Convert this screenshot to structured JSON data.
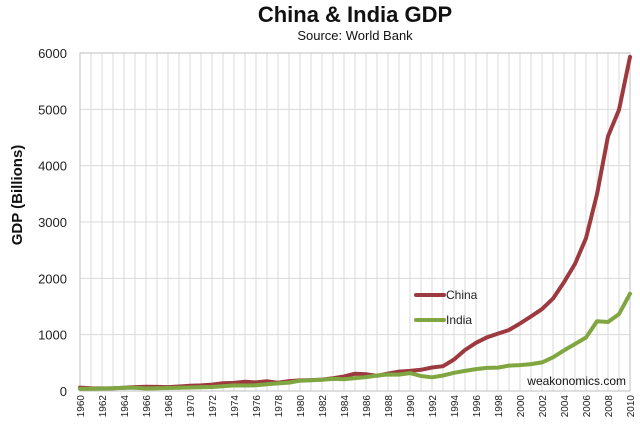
{
  "chart_data": {
    "type": "line",
    "title": "China & India GDP",
    "subtitle": "Source: World Bank",
    "xlabel": "",
    "ylabel": "GDP (Billions)",
    "credit": "weakonomics.com",
    "ylim": [
      0,
      6000
    ],
    "yticks": [
      0,
      1000,
      2000,
      3000,
      4000,
      5000,
      6000
    ],
    "x": [
      1960,
      1961,
      1962,
      1963,
      1964,
      1965,
      1966,
      1967,
      1968,
      1969,
      1970,
      1971,
      1972,
      1973,
      1974,
      1975,
      1976,
      1977,
      1978,
      1979,
      1980,
      1981,
      1982,
      1983,
      1984,
      1985,
      1986,
      1987,
      1988,
      1989,
      1990,
      1991,
      1992,
      1993,
      1994,
      1995,
      1996,
      1997,
      1998,
      1999,
      2000,
      2001,
      2002,
      2003,
      2004,
      2005,
      2006,
      2007,
      2008,
      2009,
      2010
    ],
    "xtick_labels": [
      "1960",
      "1962",
      "1964",
      "1966",
      "1968",
      "1970",
      "1972",
      "1974",
      "1976",
      "1978",
      "1980",
      "1982",
      "1984",
      "1986",
      "1988",
      "1990",
      "1992",
      "1994",
      "1996",
      "1998",
      "2000",
      "2002",
      "2004",
      "2006",
      "2008",
      "2010"
    ],
    "grid": true,
    "legend": "center-right",
    "series": [
      {
        "name": "China",
        "color": "#9c3a3f",
        "values": [
          61,
          50,
          47,
          50,
          59,
          70,
          76,
          72,
          70,
          79,
          92,
          99,
          113,
          138,
          144,
          163,
          153,
          172,
          148,
          176,
          189,
          194,
          203,
          228,
          257,
          307,
          298,
          270,
          309,
          345,
          357,
          376,
          418,
          441,
          559,
          728,
          856,
          953,
          1019,
          1083,
          1198,
          1325,
          1454,
          1641,
          1932,
          2257,
          2713,
          3494,
          4522,
          4991,
          5930
        ]
      },
      {
        "name": "India",
        "color": "#7fa640",
        "values": [
          37,
          39,
          42,
          48,
          56,
          59,
          45,
          50,
          53,
          58,
          62,
          67,
          71,
          85,
          99,
          97,
          101,
          119,
          135,
          150,
          183,
          190,
          198,
          215,
          208,
          229,
          246,
          275,
          293,
          292,
          317,
          267,
          244,
          276,
          323,
          356,
          388,
          410,
          416,
          450,
          460,
          478,
          507,
          599,
          721,
          834,
          949,
          1239,
          1224,
          1365,
          1727
        ]
      }
    ]
  }
}
